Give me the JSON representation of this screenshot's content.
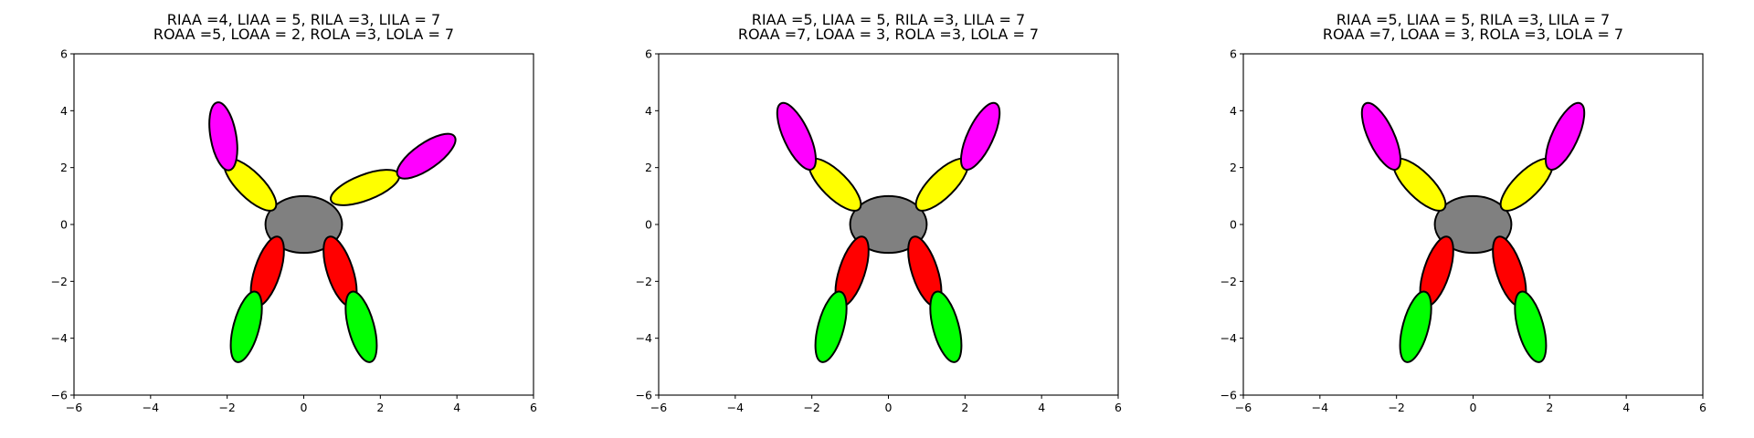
{
  "colors": {
    "body": "#808080",
    "inner_arm": "#ffff00",
    "outer_arm": "#ff00ff",
    "inner_leg": "#ff0000",
    "outer_leg": "#00ff00",
    "outline": "#000000"
  },
  "chart_data": [
    {
      "type": "scatter",
      "title": [
        "RIAA =4, LIAA = 5, RILA =3, LILA = 7",
        "ROAA =5, LOAA = 2, ROLA =3, LOLA = 7"
      ],
      "xlim": [
        -6,
        6
      ],
      "ylim": [
        -6,
        6
      ],
      "xticks": [
        -6,
        -4,
        -2,
        0,
        2,
        4,
        6
      ],
      "yticks": [
        -6,
        -4,
        -2,
        0,
        2,
        4,
        6
      ],
      "grid": false,
      "ellipses": [
        {
          "part": "body",
          "cx": 0,
          "cy": 0,
          "rx": 1.0,
          "ry": 1.0,
          "angle": 0,
          "color": "body"
        },
        {
          "part": "inner-arm-left",
          "cx": -1.4,
          "cy": 1.4,
          "rx": 0.9,
          "ry": 0.45,
          "angle": -45,
          "color": "inner_arm"
        },
        {
          "part": "outer-arm-left",
          "cx": -2.1,
          "cy": 3.1,
          "rx": 0.9,
          "ry": 0.45,
          "angle": -80,
          "color": "outer_arm"
        },
        {
          "part": "inner-arm-right",
          "cx": 1.6,
          "cy": 1.3,
          "rx": 0.95,
          "ry": 0.45,
          "angle": 21,
          "color": "inner_arm"
        },
        {
          "part": "outer-arm-right",
          "cx": 3.2,
          "cy": 2.4,
          "rx": 0.9,
          "ry": 0.45,
          "angle": 35,
          "color": "outer_arm"
        },
        {
          "part": "inner-leg-left",
          "cx": -0.95,
          "cy": -1.65,
          "rx": 0.95,
          "ry": 0.45,
          "angle": 72,
          "color": "inner_leg"
        },
        {
          "part": "outer-leg-left",
          "cx": -1.5,
          "cy": -3.6,
          "rx": 0.95,
          "ry": 0.45,
          "angle": 75,
          "color": "outer_leg"
        },
        {
          "part": "inner-leg-right",
          "cx": 0.95,
          "cy": -1.65,
          "rx": 0.95,
          "ry": 0.45,
          "angle": -72,
          "color": "inner_leg"
        },
        {
          "part": "outer-leg-right",
          "cx": 1.5,
          "cy": -3.6,
          "rx": 0.95,
          "ry": 0.45,
          "angle": -75,
          "color": "outer_leg"
        }
      ]
    },
    {
      "type": "scatter",
      "title": [
        "RIAA =5, LIAA = 5, RILA =3, LILA = 7",
        "ROAA =7, LOAA = 3, ROLA =3, LOLA = 7"
      ],
      "xlim": [
        -6,
        6
      ],
      "ylim": [
        -6,
        6
      ],
      "xticks": [
        -6,
        -4,
        -2,
        0,
        2,
        4,
        6
      ],
      "yticks": [
        -6,
        -4,
        -2,
        0,
        2,
        4,
        6
      ],
      "grid": false,
      "ellipses": [
        {
          "part": "body",
          "cx": 0,
          "cy": 0,
          "rx": 1.0,
          "ry": 1.0,
          "angle": 0,
          "color": "body"
        },
        {
          "part": "inner-arm-left",
          "cx": -1.4,
          "cy": 1.4,
          "rx": 0.9,
          "ry": 0.45,
          "angle": -45,
          "color": "inner_arm"
        },
        {
          "part": "outer-arm-left",
          "cx": -2.4,
          "cy": 3.1,
          "rx": 0.95,
          "ry": 0.45,
          "angle": -65,
          "color": "outer_arm"
        },
        {
          "part": "inner-arm-right",
          "cx": 1.4,
          "cy": 1.4,
          "rx": 0.9,
          "ry": 0.45,
          "angle": 45,
          "color": "inner_arm"
        },
        {
          "part": "outer-arm-right",
          "cx": 2.4,
          "cy": 3.1,
          "rx": 0.95,
          "ry": 0.45,
          "angle": 65,
          "color": "outer_arm"
        },
        {
          "part": "inner-leg-left",
          "cx": -0.95,
          "cy": -1.65,
          "rx": 0.95,
          "ry": 0.45,
          "angle": 72,
          "color": "inner_leg"
        },
        {
          "part": "outer-leg-left",
          "cx": -1.5,
          "cy": -3.6,
          "rx": 0.95,
          "ry": 0.45,
          "angle": 75,
          "color": "outer_leg"
        },
        {
          "part": "inner-leg-right",
          "cx": 0.95,
          "cy": -1.65,
          "rx": 0.95,
          "ry": 0.45,
          "angle": -72,
          "color": "inner_leg"
        },
        {
          "part": "outer-leg-right",
          "cx": 1.5,
          "cy": -3.6,
          "rx": 0.95,
          "ry": 0.45,
          "angle": -75,
          "color": "outer_leg"
        }
      ]
    },
    {
      "type": "scatter",
      "title": [
        "RIAA =5, LIAA = 5, RILA =3, LILA = 7",
        "ROAA =7, LOAA = 3, ROLA =3, LOLA = 7"
      ],
      "xlim": [
        -6,
        6
      ],
      "ylim": [
        -6,
        6
      ],
      "xticks": [
        -6,
        -4,
        -2,
        0,
        2,
        4,
        6
      ],
      "yticks": [
        -6,
        -4,
        -2,
        0,
        2,
        4,
        6
      ],
      "grid": false,
      "ellipses": [
        {
          "part": "body",
          "cx": 0,
          "cy": 0,
          "rx": 1.0,
          "ry": 1.0,
          "angle": 0,
          "color": "body"
        },
        {
          "part": "inner-arm-left",
          "cx": -1.4,
          "cy": 1.4,
          "rx": 0.9,
          "ry": 0.45,
          "angle": -45,
          "color": "inner_arm"
        },
        {
          "part": "outer-arm-left",
          "cx": -2.4,
          "cy": 3.1,
          "rx": 0.95,
          "ry": 0.45,
          "angle": -65,
          "color": "outer_arm"
        },
        {
          "part": "inner-arm-right",
          "cx": 1.4,
          "cy": 1.4,
          "rx": 0.9,
          "ry": 0.45,
          "angle": 45,
          "color": "inner_arm"
        },
        {
          "part": "outer-arm-right",
          "cx": 2.4,
          "cy": 3.1,
          "rx": 0.95,
          "ry": 0.45,
          "angle": 65,
          "color": "outer_arm"
        },
        {
          "part": "inner-leg-left",
          "cx": -0.95,
          "cy": -1.65,
          "rx": 0.95,
          "ry": 0.45,
          "angle": 72,
          "color": "inner_leg"
        },
        {
          "part": "outer-leg-left",
          "cx": -1.5,
          "cy": -3.6,
          "rx": 0.95,
          "ry": 0.45,
          "angle": 75,
          "color": "outer_leg"
        },
        {
          "part": "inner-leg-right",
          "cx": 0.95,
          "cy": -1.65,
          "rx": 0.95,
          "ry": 0.45,
          "angle": -72,
          "color": "inner_leg"
        },
        {
          "part": "outer-leg-right",
          "cx": 1.5,
          "cy": -3.6,
          "rx": 0.95,
          "ry": 0.45,
          "angle": -75,
          "color": "outer_leg"
        }
      ]
    }
  ]
}
